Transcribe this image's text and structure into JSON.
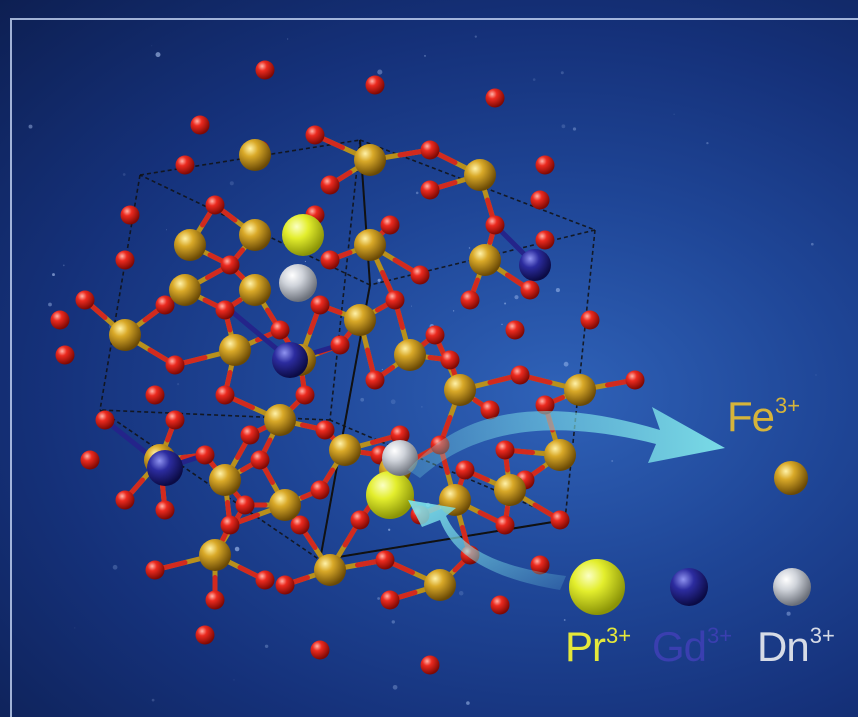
{
  "labels": {
    "fe": {
      "symbol": "Fe",
      "charge": "3+"
    },
    "pr": {
      "symbol": "Pr",
      "charge": "3+"
    },
    "gd": {
      "symbol": "Gd",
      "charge": "3+"
    },
    "dn": {
      "symbol": "Dn",
      "charge": "3+"
    }
  },
  "colors": {
    "fe_atom": "#c99a1e",
    "oxygen_atom": "#e8231c",
    "pr_atom": "#e0ec2c",
    "gd_atom": "#2a2a9a",
    "dn_atom": "#cfd3da",
    "arrow": "#7ee3ea",
    "fe_text": "#d6b43a",
    "pr_text": "#e5e83a",
    "gd_text": "#3a3fb0",
    "dn_text": "#d6dbe6"
  }
}
